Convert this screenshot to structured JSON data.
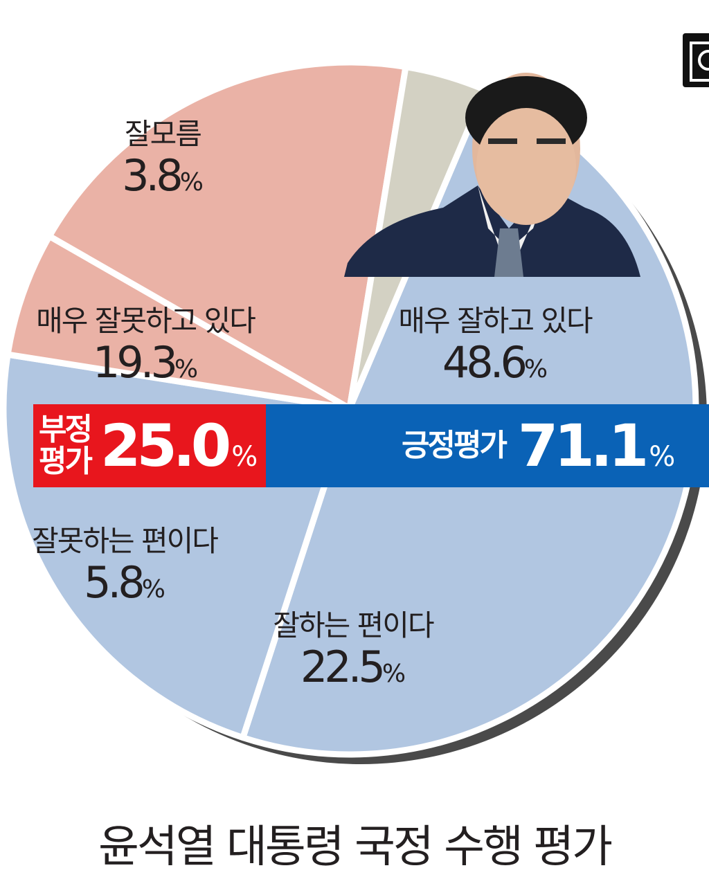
{
  "title": "윤석열 대통령 국정 수행 평가",
  "chart_data": {
    "type": "pie",
    "title": "윤석열 대통령 국정 수행 평가",
    "slices": [
      {
        "label": "매우 잘하고 있다",
        "value": 48.6,
        "value_text": "48.6",
        "color": "#b1c6e1"
      },
      {
        "label": "잘하는 편이다",
        "value": 22.5,
        "value_text": "22.5",
        "color": "#b1c6e1"
      },
      {
        "label": "잘못하는 편이다",
        "value": 5.8,
        "value_text": "5.8",
        "color": "#eab2a6"
      },
      {
        "label": "매우 잘못하고 있다",
        "value": 19.3,
        "value_text": "19.3",
        "color": "#eab2a6"
      },
      {
        "label": "잘모름",
        "value": 3.8,
        "value_text": "3.8",
        "color": "#d3d1c3"
      }
    ],
    "percent_sign": "%",
    "groups": {
      "positive": {
        "caption": "긍정평가",
        "value": 71.1,
        "value_text": "71.1",
        "color": "#0a62b6"
      },
      "negative": {
        "caption_line1": "부정",
        "caption_line2": "평가",
        "value": 25.0,
        "value_text": "25.0",
        "color": "#e8161d"
      }
    }
  },
  "photo": {
    "description": "portrait-photo"
  },
  "icons": {
    "camera": "camera-icon"
  }
}
